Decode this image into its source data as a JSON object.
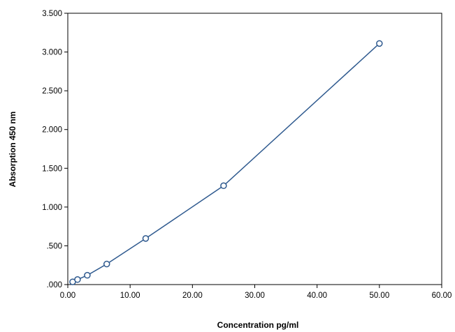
{
  "chart_data": {
    "type": "line",
    "title": "",
    "xlabel": "Concentration pg/ml",
    "ylabel": "Absorption 450 nm",
    "xlim": [
      0,
      60
    ],
    "ylim": [
      0,
      3.5
    ],
    "x_ticks": [
      0,
      10,
      20,
      30,
      40,
      50,
      60
    ],
    "x_tick_labels": [
      "0.00",
      "10.00",
      "20.00",
      "30.00",
      "40.00",
      "50.00",
      "60.00"
    ],
    "y_ticks": [
      0,
      0.5,
      1,
      1.5,
      2,
      2.5,
      3,
      3.5
    ],
    "y_tick_labels": [
      ".000",
      ".500",
      "1.000",
      "1.500",
      "2.000",
      "2.500",
      "3.000",
      "3.500"
    ],
    "grid": false,
    "legend": "none",
    "series": [
      {
        "color": "#2f5a8f",
        "marker": "open-circle",
        "x": [
          0.78,
          1.56,
          3.13,
          6.25,
          12.5,
          25,
          50
        ],
        "y": [
          0.035,
          0.065,
          0.12,
          0.265,
          0.595,
          1.275,
          3.11
        ]
      }
    ]
  }
}
